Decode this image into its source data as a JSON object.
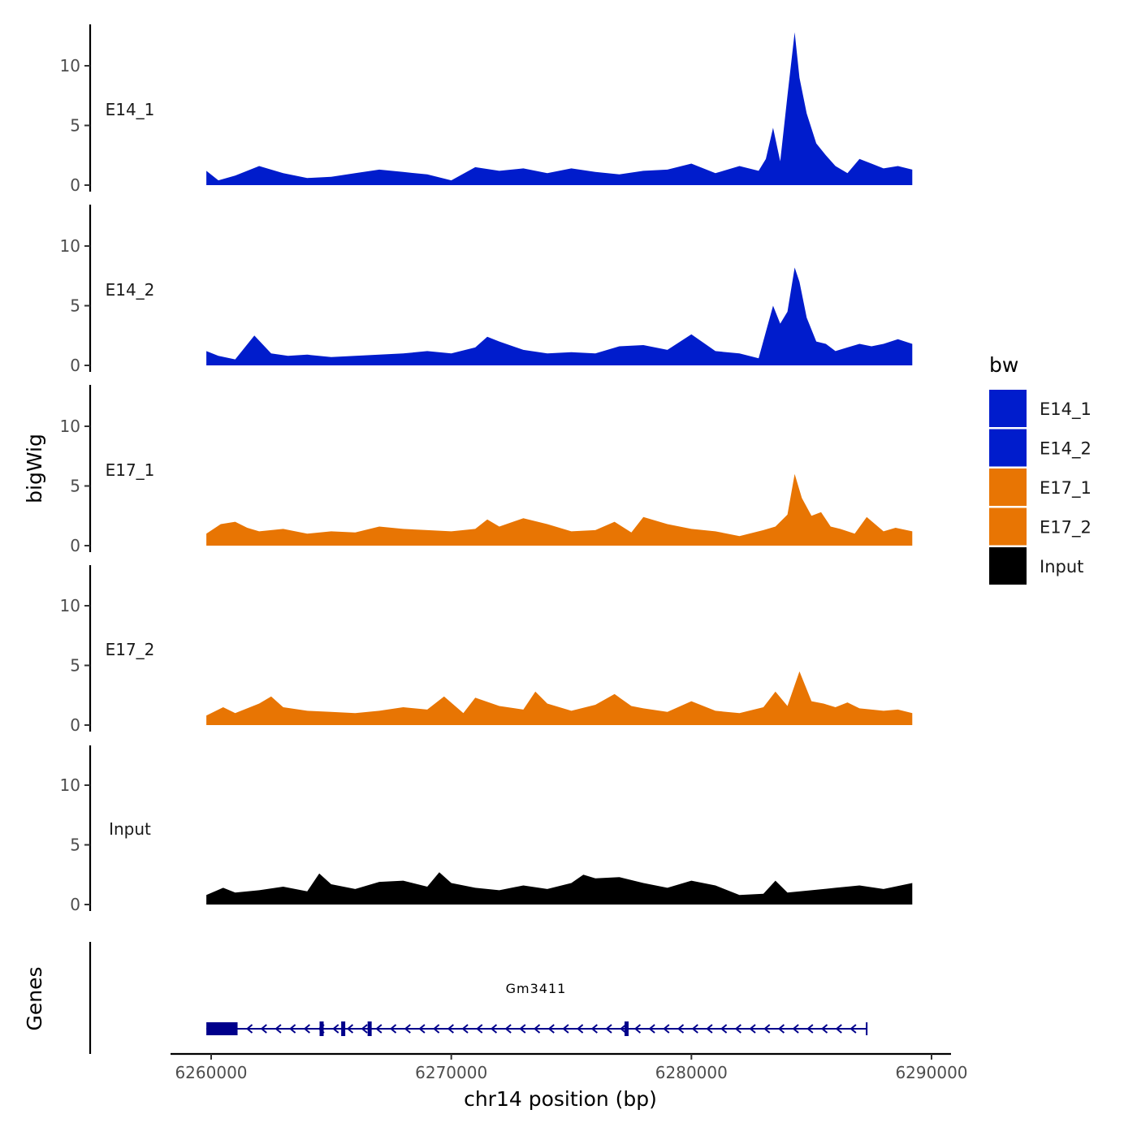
{
  "chart_data": {
    "type": "area",
    "ylabel": "bigWig",
    "xlabel": "chr14 position (bp)",
    "x_range": [
      6259800,
      6289200
    ],
    "x_ticks": [
      6260000,
      6270000,
      6280000,
      6290000
    ],
    "x_tick_labels": [
      "6260000",
      "6270000",
      "6280000",
      "6290000"
    ],
    "y_range": [
      0,
      13.5
    ],
    "y_ticks": [
      0,
      5,
      10
    ],
    "y_tick_labels": [
      "0",
      "5",
      "10"
    ],
    "legend": {
      "title": "bw",
      "position": "right",
      "entries": [
        {
          "label": "E14_1",
          "color": "#001CCC"
        },
        {
          "label": "E14_2",
          "color": "#001CCC"
        },
        {
          "label": "E17_1",
          "color": "#E87503"
        },
        {
          "label": "E17_2",
          "color": "#E87503"
        },
        {
          "label": "Input",
          "color": "#000000"
        }
      ]
    },
    "tracks": [
      {
        "name": "E14_1",
        "color": "#001CCC",
        "x": [
          6259800,
          6260300,
          6261000,
          6262000,
          6263000,
          6264000,
          6265000,
          6266000,
          6267000,
          6268000,
          6269000,
          6270000,
          6271000,
          6272000,
          6273000,
          6274000,
          6275000,
          6276000,
          6277000,
          6278000,
          6279000,
          6280000,
          6281000,
          6282000,
          6282800,
          6283100,
          6283400,
          6283700,
          6284000,
          6284300,
          6284500,
          6284800,
          6285200,
          6285600,
          6286000,
          6286500,
          6287000,
          6287500,
          6288000,
          6288600,
          6289200
        ],
        "values": [
          1.2,
          0.4,
          0.8,
          1.6,
          1.0,
          0.6,
          0.7,
          1.0,
          1.3,
          1.1,
          0.9,
          0.4,
          1.5,
          1.2,
          1.4,
          1.0,
          1.4,
          1.1,
          0.9,
          1.2,
          1.3,
          1.8,
          1.0,
          1.6,
          1.2,
          2.2,
          4.8,
          2.0,
          7.5,
          12.8,
          9.0,
          6.0,
          3.5,
          2.5,
          1.6,
          1.0,
          2.2,
          1.8,
          1.4,
          1.6,
          1.3
        ]
      },
      {
        "name": "E14_2",
        "color": "#001CCC",
        "x": [
          6259800,
          6260300,
          6261000,
          6261800,
          6262500,
          6263200,
          6264000,
          6265000,
          6266000,
          6267000,
          6268000,
          6269000,
          6270000,
          6271000,
          6271500,
          6272000,
          6273000,
          6274000,
          6275000,
          6276000,
          6277000,
          6278000,
          6279000,
          6280000,
          6281000,
          6282000,
          6282800,
          6283100,
          6283400,
          6283700,
          6284000,
          6284300,
          6284500,
          6284800,
          6285200,
          6285600,
          6286000,
          6286500,
          6287000,
          6287500,
          6288000,
          6288600,
          6289200
        ],
        "values": [
          1.2,
          0.8,
          0.5,
          2.5,
          1.0,
          0.8,
          0.9,
          0.7,
          0.8,
          0.9,
          1.0,
          1.2,
          1.0,
          1.5,
          2.4,
          2.0,
          1.3,
          1.0,
          1.1,
          1.0,
          1.6,
          1.7,
          1.3,
          2.6,
          1.2,
          1.0,
          0.6,
          2.8,
          5.0,
          3.5,
          4.5,
          8.2,
          7.0,
          4.0,
          2.0,
          1.8,
          1.2,
          1.5,
          1.8,
          1.6,
          1.8,
          2.2,
          1.8
        ]
      },
      {
        "name": "E17_1",
        "color": "#E87503",
        "x": [
          6259800,
          6260400,
          6261000,
          6261500,
          6262000,
          6263000,
          6264000,
          6265000,
          6266000,
          6267000,
          6268000,
          6269000,
          6270000,
          6271000,
          6271500,
          6272000,
          6273000,
          6274000,
          6275000,
          6276000,
          6276800,
          6277500,
          6278000,
          6279000,
          6280000,
          6281000,
          6282000,
          6283000,
          6283500,
          6284000,
          6284300,
          6284600,
          6285000,
          6285400,
          6285800,
          6286200,
          6286800,
          6287300,
          6288000,
          6288500,
          6289200
        ],
        "values": [
          1.0,
          1.8,
          2.0,
          1.5,
          1.2,
          1.4,
          1.0,
          1.2,
          1.1,
          1.6,
          1.4,
          1.3,
          1.2,
          1.4,
          2.2,
          1.6,
          2.3,
          1.8,
          1.2,
          1.3,
          2.0,
          1.1,
          2.4,
          1.8,
          1.4,
          1.2,
          0.8,
          1.3,
          1.6,
          2.6,
          6.0,
          4.0,
          2.5,
          2.8,
          1.6,
          1.4,
          1.0,
          2.4,
          1.2,
          1.5,
          1.2
        ]
      },
      {
        "name": "E17_2",
        "color": "#E87503",
        "x": [
          6259800,
          6260500,
          6261000,
          6262000,
          6262500,
          6263000,
          6264000,
          6265000,
          6266000,
          6267000,
          6268000,
          6269000,
          6269700,
          6270500,
          6271000,
          6272000,
          6273000,
          6273500,
          6274000,
          6275000,
          6276000,
          6276800,
          6277500,
          6278000,
          6279000,
          6280000,
          6281000,
          6282000,
          6283000,
          6283500,
          6284000,
          6284500,
          6285000,
          6285500,
          6286000,
          6286500,
          6287000,
          6288000,
          6288600,
          6289200
        ],
        "values": [
          0.8,
          1.5,
          1.0,
          1.8,
          2.4,
          1.5,
          1.2,
          1.1,
          1.0,
          1.2,
          1.5,
          1.3,
          2.4,
          1.0,
          2.3,
          1.6,
          1.3,
          2.8,
          1.8,
          1.2,
          1.7,
          2.6,
          1.6,
          1.4,
          1.1,
          2.0,
          1.2,
          1.0,
          1.5,
          2.8,
          1.6,
          4.5,
          2.0,
          1.8,
          1.5,
          1.9,
          1.4,
          1.2,
          1.3,
          1.0
        ]
      },
      {
        "name": "Input",
        "color": "#000000",
        "x": [
          6259800,
          6260500,
          6261000,
          6262000,
          6263000,
          6264000,
          6264500,
          6265000,
          6266000,
          6267000,
          6268000,
          6269000,
          6269500,
          6270000,
          6271000,
          6272000,
          6273000,
          6274000,
          6275000,
          6275500,
          6276000,
          6277000,
          6278000,
          6279000,
          6280000,
          6281000,
          6282000,
          6283000,
          6283500,
          6284000,
          6285000,
          6286000,
          6287000,
          6288000,
          6289200
        ],
        "values": [
          0.8,
          1.4,
          1.0,
          1.2,
          1.5,
          1.1,
          2.6,
          1.7,
          1.3,
          1.9,
          2.0,
          1.5,
          2.7,
          1.8,
          1.4,
          1.2,
          1.6,
          1.3,
          1.8,
          2.5,
          2.2,
          2.3,
          1.8,
          1.4,
          2.0,
          1.6,
          0.8,
          0.9,
          2.0,
          1.0,
          1.2,
          1.4,
          1.6,
          1.3,
          1.8
        ]
      }
    ],
    "genes_track": {
      "label": "Genes",
      "gene_name": "Gm3411",
      "color": "#00008B",
      "strand": "-",
      "start": 6259800,
      "end": 6287300,
      "utr_block": [
        6259800,
        6261100
      ],
      "exon_marks": [
        6264600,
        6265500,
        6266600,
        6277300
      ]
    }
  }
}
